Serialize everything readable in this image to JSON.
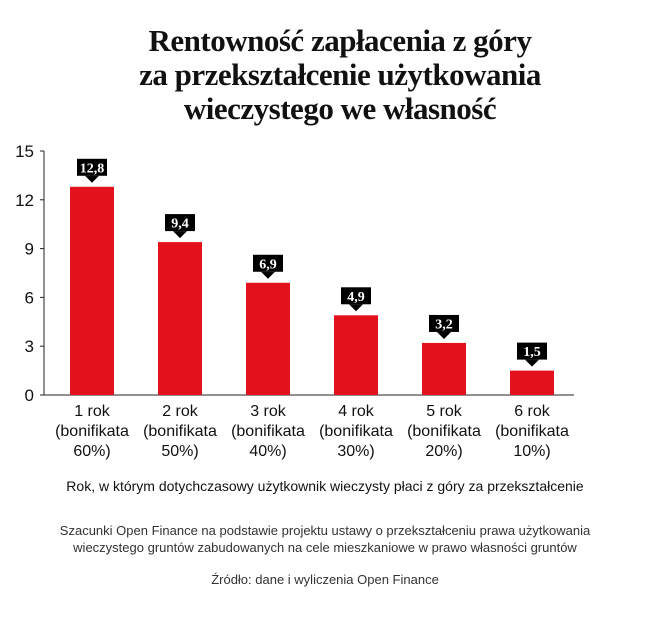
{
  "header": {
    "title_lines": [
      "Rentowność zapłacenia z góry",
      "za przekształcenie użytkowania",
      "wieczystego we własność"
    ]
  },
  "chart_data": {
    "type": "bar",
    "categories": [
      [
        "1 rok",
        "(bonifikata",
        "60%)"
      ],
      [
        "2 rok",
        "(bonifikata",
        "50%)"
      ],
      [
        "3 rok",
        "(bonifikata",
        "40%)"
      ],
      [
        "4 rok",
        "(bonifikata",
        "30%)"
      ],
      [
        "5 rok",
        "(bonifikata",
        "20%)"
      ],
      [
        "6 rok",
        "(bonifikata",
        "10%)"
      ]
    ],
    "values": [
      12.8,
      9.4,
      6.9,
      4.9,
      3.2,
      1.5
    ],
    "value_labels": [
      "12,8",
      "9,4",
      "6,9",
      "4,9",
      "3,2",
      "1,5"
    ],
    "yticks": [
      "0",
      "3",
      "6",
      "9",
      "12",
      "15"
    ],
    "ylim": [
      0,
      15
    ],
    "xlabel": "Rok, w którym dotychczasowy użytkownik wieczysty płaci z góry za przekształcenie",
    "bar_color": "#e3111b",
    "label_bg_color": "#000000",
    "label_text_color": "#ffffff",
    "grid": false
  },
  "footer": {
    "note_lines": [
      "Szacunki Open Finance na podstawie projektu ustawy o przekształceniu prawa użytkowania",
      "wieczystego gruntów zabudowanych na cele mieszkaniowe w prawo własności gruntów"
    ],
    "source": "Źródło: dane i wyliczenia Open Finance"
  }
}
